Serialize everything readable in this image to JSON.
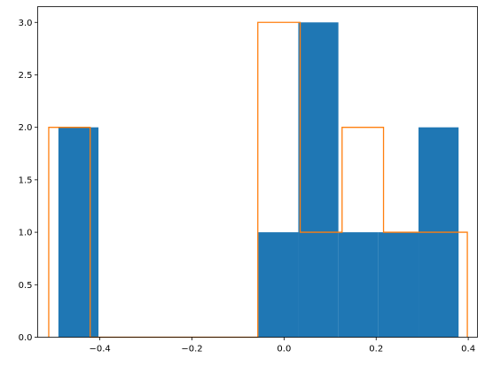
{
  "chart_data": {
    "type": "histogram",
    "grid": false,
    "xlim": [
      -0.535,
      0.42
    ],
    "ylim": [
      0,
      3.15
    ],
    "xticks": [
      -0.4,
      -0.2,
      0.0,
      0.2,
      0.4
    ],
    "xtick_labels": [
      "−0.4",
      "−0.2",
      "0.0",
      "0.2",
      "0.4"
    ],
    "yticks": [
      0.0,
      0.5,
      1.0,
      1.5,
      2.0,
      2.5,
      3.0
    ],
    "ytick_labels": [
      "0.0",
      "0.5",
      "1.0",
      "1.5",
      "2.0",
      "2.5",
      "3.0"
    ],
    "series": [
      {
        "histtype": "bar",
        "color": "#1f77b4",
        "bin_edges": [
          -0.49,
          -0.403,
          -0.316,
          -0.229,
          -0.143,
          -0.056,
          0.031,
          0.118,
          0.205,
          0.292,
          0.379
        ],
        "counts": [
          2,
          0,
          0,
          0,
          0,
          1,
          3,
          1,
          1,
          2
        ]
      },
      {
        "histtype": "step",
        "color": "#ff7f0e",
        "bin_edges": [
          -0.511,
          -0.421,
          -0.33,
          -0.239,
          -0.148,
          -0.057,
          0.035,
          0.126,
          0.216,
          0.307,
          0.398
        ],
        "counts": [
          2,
          0,
          0,
          0,
          0,
          3,
          1,
          2,
          1,
          1
        ]
      }
    ]
  }
}
